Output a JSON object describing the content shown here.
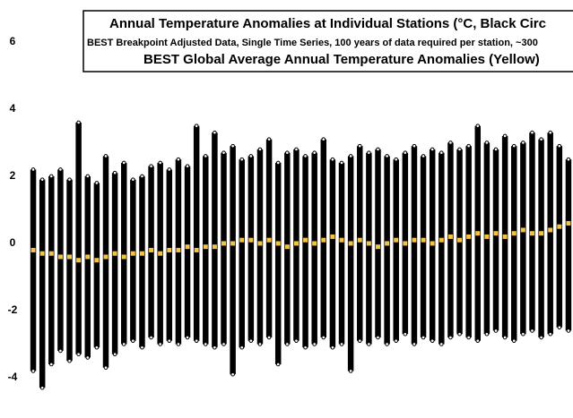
{
  "chart_data": {
    "type": "range",
    "title": "Annual Temperature Anomalies at Individual Stations (°C, Black Circ",
    "subtitle": "BEST Breakpoint Adjusted Data, Single Time Series, 100 years of data required per station, ~300",
    "subtitle2": "BEST Global Average Annual Temperature Anomalies (Yellow)",
    "low": [
      -3.8,
      -4.3,
      -3.6,
      -3.2,
      -3.5,
      -3.3,
      -3.4,
      -3.1,
      -3.7,
      -3.3,
      -3.0,
      -2.9,
      -3.1,
      -2.8,
      -3.0,
      -2.9,
      -3.0,
      -2.8,
      -2.9,
      -3.0,
      -3.1,
      -3.0,
      -3.9,
      -3.1,
      -2.9,
      -3.0,
      -2.8,
      -3.6,
      -3.0,
      -2.9,
      -3.1,
      -3.0,
      -2.8,
      -3.1,
      -3.0,
      -3.8,
      -2.9,
      -3.0,
      -2.8,
      -3.0,
      -2.9,
      -2.7,
      -3.0,
      -2.8,
      -2.9,
      -3.0,
      -2.8,
      -2.7,
      -2.8,
      -2.9,
      -2.7,
      -2.6,
      -2.8,
      -2.9,
      -2.7,
      -2.6,
      -2.8,
      -2.7,
      -2.5,
      -2.6
    ],
    "high": [
      2.2,
      1.9,
      2.0,
      2.2,
      1.9,
      3.6,
      2.0,
      1.8,
      2.6,
      2.1,
      2.4,
      1.9,
      2.0,
      2.3,
      2.4,
      2.2,
      2.5,
      2.3,
      3.5,
      2.6,
      3.3,
      2.7,
      2.9,
      2.5,
      2.6,
      2.8,
      3.1,
      2.4,
      2.7,
      2.8,
      2.6,
      2.7,
      3.1,
      2.5,
      2.4,
      2.6,
      2.9,
      2.7,
      2.8,
      2.6,
      2.5,
      2.7,
      2.9,
      2.6,
      2.8,
      2.7,
      3.0,
      2.8,
      2.9,
      3.5,
      3.0,
      2.8,
      3.2,
      2.9,
      3.0,
      3.3,
      3.1,
      3.3,
      2.9,
      2.5
    ],
    "average": [
      -0.2,
      -0.3,
      -0.3,
      -0.4,
      -0.4,
      -0.5,
      -0.4,
      -0.5,
      -0.4,
      -0.3,
      -0.4,
      -0.3,
      -0.3,
      -0.2,
      -0.3,
      -0.2,
      -0.2,
      -0.1,
      -0.2,
      -0.1,
      -0.1,
      0,
      0,
      0.1,
      0.1,
      0,
      0.1,
      0,
      -0.1,
      0,
      0.1,
      0,
      0.1,
      0.2,
      0.1,
      0,
      0.1,
      0,
      -0.1,
      0,
      0.1,
      0,
      0.1,
      0.1,
      0,
      0.1,
      0.2,
      0.1,
      0.2,
      0.3,
      0.2,
      0.3,
      0.2,
      0.3,
      0.4,
      0.3,
      0.3,
      0.4,
      0.5,
      0.6
    ],
    "color": "#000000",
    "average_color": "#f5c242",
    "ylim": [
      -5.2,
      7.25
    ],
    "yticks": [
      -4,
      -2,
      0,
      2,
      4,
      6
    ],
    "grid": true
  }
}
